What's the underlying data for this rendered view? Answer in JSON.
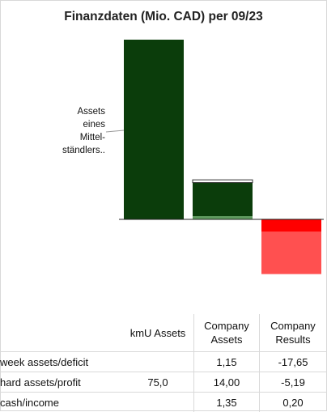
{
  "chart_data": {
    "type": "bar",
    "title": "Finanzdaten (Mio. CAD) per 09/23",
    "categories": [
      "kmU Assets",
      "Company Assets",
      "Company Results"
    ],
    "stacks": [
      {
        "category": "kmU Assets",
        "segments": [
          {
            "name": "hard assets/profit",
            "value": 75.0
          }
        ]
      },
      {
        "category": "Company Assets",
        "segments": [
          {
            "name": "cash/income",
            "value": 1.35
          },
          {
            "name": "hard assets/profit",
            "value": 14.0
          },
          {
            "name": "week assets/deficit",
            "value": 1.15
          }
        ]
      },
      {
        "category": "Company Results",
        "segments": [
          {
            "name": "cash/income",
            "value": 0.2
          },
          {
            "name": "hard assets/profit",
            "value": -5.19
          },
          {
            "name": "week assets/deficit",
            "value": -17.65
          }
        ]
      }
    ],
    "annotation": [
      "Assets",
      "eines",
      "Mittel-",
      "ständlers.."
    ],
    "colors": {
      "hard_assets_profit_positive": "#0b3d0b",
      "cash_income_positive": "#5f9a5f",
      "week_assets_outline": "#333333",
      "deficit_negative": "#ff5050",
      "hard_assets_profit_negative": "#ff0000"
    },
    "grid": false,
    "legend": "none"
  },
  "table": {
    "headers": [
      "kmU Assets",
      "Company\nAssets",
      "Company\nResults"
    ],
    "header_lines": [
      [
        "kmU Assets"
      ],
      [
        "Company",
        "Assets"
      ],
      [
        "Company",
        "Results"
      ]
    ],
    "rows": [
      {
        "label": "week assets/deficit",
        "values": [
          "",
          "1,15",
          "-17,65"
        ]
      },
      {
        "label": "hard assets/profit",
        "values": [
          "75,0",
          "14,00",
          "-5,19"
        ]
      },
      {
        "label": "cash/income",
        "values": [
          "",
          "1,35",
          "0,20"
        ]
      }
    ]
  }
}
